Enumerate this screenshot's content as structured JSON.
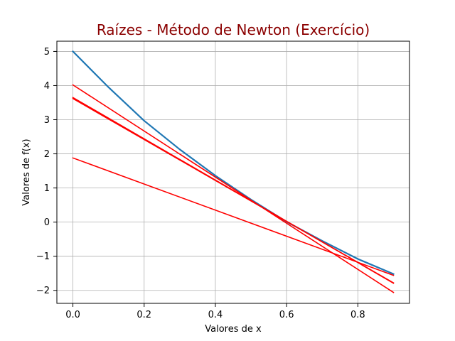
{
  "chart_data": {
    "type": "line",
    "title": "Raízes - Método de Newton (Exercício)",
    "title_color": "#8b0000",
    "xlabel": "Valores de x",
    "ylabel": "Valores de f(x)",
    "xlim": [
      -0.045,
      0.945
    ],
    "ylim": [
      -2.38,
      5.3
    ],
    "xticks": [
      0.0,
      0.2,
      0.4,
      0.6,
      0.8
    ],
    "xtick_labels": [
      "0.0",
      "0.2",
      "0.4",
      "0.6",
      "0.8"
    ],
    "yticks": [
      -2,
      -1,
      0,
      1,
      2,
      3,
      4,
      5
    ],
    "ytick_labels": [
      "−2",
      "−1",
      "0",
      "1",
      "2",
      "3",
      "4",
      "5"
    ],
    "grid": true,
    "series": [
      {
        "color": "#1f77b4",
        "width": 2.2,
        "x": [
          0.0,
          0.1,
          0.2,
          0.3,
          0.4,
          0.5,
          0.6,
          0.7,
          0.8,
          0.9
        ],
        "y": [
          5.0,
          3.95,
          2.97,
          2.13,
          1.36,
          0.66,
          0.01,
          -0.55,
          -1.08,
          -1.52
        ]
      },
      {
        "color": "#ff0000",
        "width": 1.6,
        "x": [
          0.0,
          0.9
        ],
        "y": [
          4.02,
          -2.06
        ]
      },
      {
        "color": "#ff0000",
        "width": 1.6,
        "x": [
          0.0,
          0.9
        ],
        "y": [
          3.65,
          -1.79
        ]
      },
      {
        "color": "#ff0000",
        "width": 1.6,
        "x": [
          0.0,
          0.9
        ],
        "y": [
          3.62,
          -1.78
        ]
      },
      {
        "color": "#ff0000",
        "width": 1.6,
        "x": [
          0.0,
          0.9
        ],
        "y": [
          1.88,
          -1.56
        ]
      }
    ]
  }
}
